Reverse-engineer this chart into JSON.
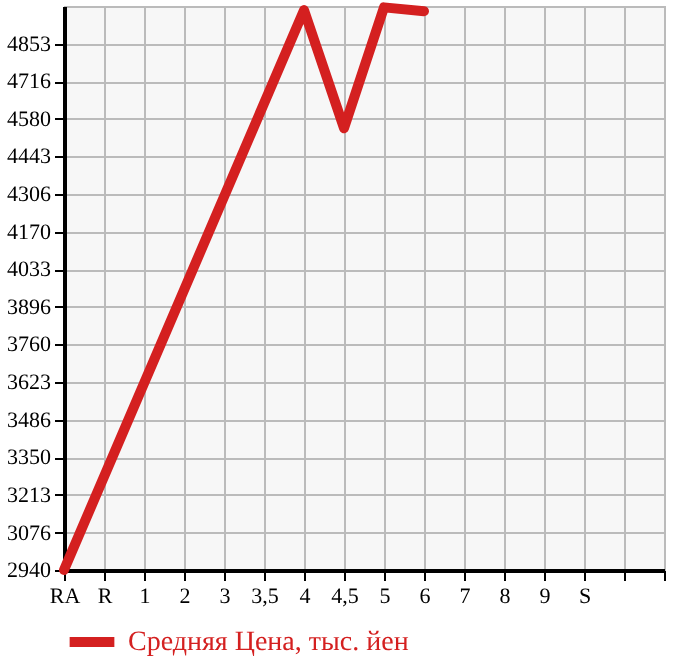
{
  "chart_data": {
    "type": "line",
    "categories": [
      "RA",
      "R",
      "1",
      "2",
      "3",
      "3,5",
      "4",
      "4,5",
      "5",
      "6",
      "7",
      "8",
      "9",
      "S",
      null,
      null
    ],
    "series": [
      {
        "name": "Средняя Цена, тыс. йен",
        "color": "#d42020",
        "values": [
          2940,
          null,
          null,
          null,
          null,
          null,
          4975,
          4546,
          4985,
          4971,
          null,
          null,
          null,
          null,
          null,
          null
        ]
      }
    ],
    "ylim": [
      2940,
      4990
    ],
    "yticks": [
      2940,
      3076,
      3213,
      3350,
      3486,
      3623,
      3760,
      3896,
      4033,
      4170,
      4306,
      4443,
      4580,
      4716,
      4853
    ],
    "grid": true,
    "legend": "bottom",
    "marker": "none",
    "line_style": "solid"
  }
}
